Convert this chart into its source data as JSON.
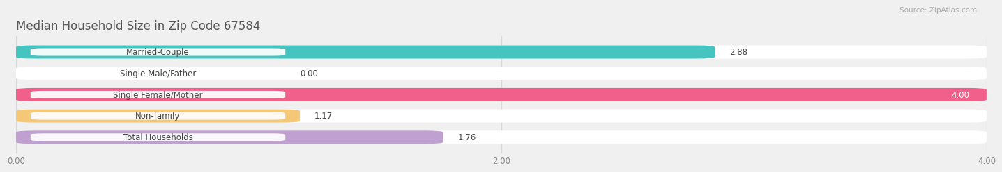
{
  "title": "Median Household Size in Zip Code 67584",
  "source": "Source: ZipAtlas.com",
  "categories": [
    "Married-Couple",
    "Single Male/Father",
    "Single Female/Mother",
    "Non-family",
    "Total Households"
  ],
  "values": [
    2.88,
    0.0,
    4.0,
    1.17,
    1.76
  ],
  "bar_colors": [
    "#45c4c0",
    "#9db8e8",
    "#f0608a",
    "#f5c878",
    "#c0a0d0"
  ],
  "background_color": "#f0f0f0",
  "bar_bg_color": "#ffffff",
  "xlim": [
    0.0,
    4.0
  ],
  "xticks": [
    0.0,
    2.0,
    4.0
  ],
  "xtick_labels": [
    "0.00",
    "2.00",
    "4.00"
  ],
  "value_fontsize": 8.5,
  "label_fontsize": 8.5,
  "title_fontsize": 12,
  "grid_color": "#d8d8d8",
  "bar_height": 0.62,
  "bar_gap": 0.38
}
